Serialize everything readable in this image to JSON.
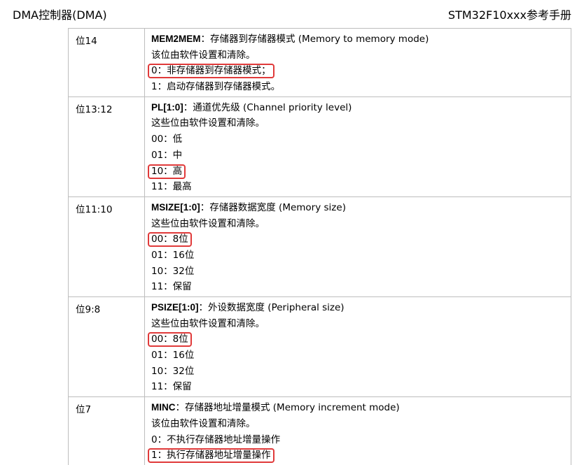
{
  "header": {
    "left": "DMA控制器(DMA)",
    "right": "STM32F10xxx参考手册"
  },
  "rows": [
    {
      "bit": "位14",
      "title_bold": "MEM2MEM",
      "title_rest": "：存储器到存储器模式 (Memory to memory mode)",
      "lines": [
        "该位由软件设置和清除。",
        "0：非存储器到存储器模式；",
        "1：启动存储器到存储器模式。"
      ]
    },
    {
      "bit": "位13:12",
      "title_bold": "PL[1:0]",
      "title_rest": "：通道优先级 (Channel priority level)",
      "lines": [
        "这些位由软件设置和清除。",
        "00：低",
        "01：中",
        "10：高",
        "11：最高"
      ]
    },
    {
      "bit": "位11:10",
      "title_bold": "MSIZE[1:0]",
      "title_rest": "：存储器数据宽度 (Memory size)",
      "lines": [
        "这些位由软件设置和清除。",
        "00：8位",
        "01：16位",
        "10：32位",
        "11：保留"
      ]
    },
    {
      "bit": "位9:8",
      "title_bold": "PSIZE[1:0]",
      "title_rest": "：外设数据宽度 (Peripheral size)",
      "lines": [
        "这些位由软件设置和清除。",
        "00：8位",
        "01：16位",
        "10：32位",
        "11：保留"
      ]
    },
    {
      "bit": "位7",
      "title_bold": "MINC",
      "title_rest": "：存储器地址增量模式 (Memory increment mode)",
      "lines": [
        "该位由软件设置和清除。",
        "0：不执行存储器地址增量操作",
        "1：执行存储器地址增量操作"
      ]
    }
  ]
}
